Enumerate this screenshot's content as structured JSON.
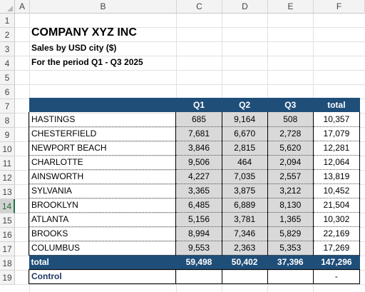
{
  "columns": [
    "A",
    "B",
    "C",
    "D",
    "E",
    "F"
  ],
  "rows": [
    "1",
    "2",
    "3",
    "4",
    "5",
    "6",
    "7",
    "8",
    "9",
    "10",
    "11",
    "12",
    "13",
    "14",
    "15",
    "16",
    "17",
    "18",
    "19"
  ],
  "selected_row": "14",
  "title": "COMPANY XYZ INC",
  "subtitle1": "Sales by USD city ($)",
  "subtitle2": "For the period Q1 - Q3 2025",
  "table": {
    "headers": [
      "",
      "Q1",
      "Q2",
      "Q3",
      "total"
    ],
    "rows": [
      [
        "HASTINGS",
        "685",
        "9,164",
        "508",
        "10,357"
      ],
      [
        "CHESTERFIELD",
        "7,681",
        "6,670",
        "2,728",
        "17,079"
      ],
      [
        "NEWPORT BEACH",
        "3,846",
        "2,815",
        "5,620",
        "12,281"
      ],
      [
        "CHARLOTTE",
        "9,506",
        "464",
        "2,094",
        "12,064"
      ],
      [
        "AINSWORTH",
        "4,227",
        "7,035",
        "2,557",
        "13,819"
      ],
      [
        "SYLVANIA",
        "3,365",
        "3,875",
        "3,212",
        "10,452"
      ],
      [
        "BROOKLYN",
        "6,485",
        "6,889",
        "8,130",
        "21,504"
      ],
      [
        "ATLANTA",
        "5,156",
        "3,781",
        "1,365",
        "10,302"
      ],
      [
        "BROOKS",
        "8,994",
        "7,346",
        "5,829",
        "22,169"
      ],
      [
        "COLUMBUS",
        "9,553",
        "2,363",
        "5,353",
        "17,269"
      ]
    ],
    "total_row": [
      "total",
      "59,498",
      "50,402",
      "37,396",
      "147,296"
    ],
    "control_row": [
      "Control",
      "",
      "",
      "",
      "-"
    ]
  },
  "colors": {
    "header_fill": "#1f4e79",
    "cell_fill": "#d9d9d9",
    "control_text": "#1f3864"
  }
}
